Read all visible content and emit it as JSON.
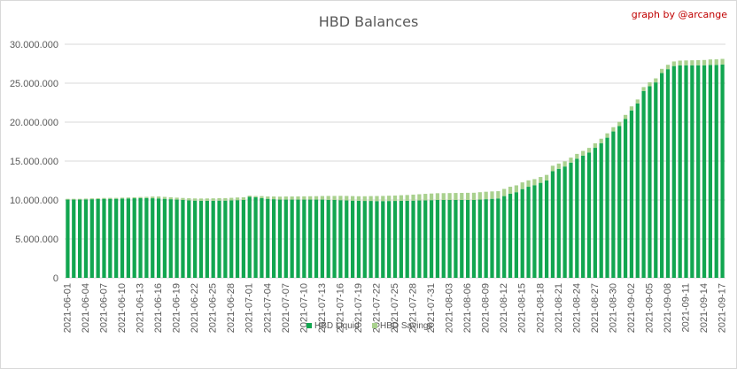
{
  "chart_data": {
    "type": "bar",
    "stacked": true,
    "title": "HBD Balances",
    "credit": "graph by @arcange",
    "xlabel": "",
    "ylabel": "",
    "ylim": [
      0,
      30000000
    ],
    "yticks": [
      0,
      5000000,
      10000000,
      15000000,
      20000000,
      25000000,
      30000000
    ],
    "ytick_labels": [
      "0",
      "5.000.000",
      "10.000.000",
      "15.000.000",
      "20.000.000",
      "25.000.000",
      "30.000.000"
    ],
    "grid": true,
    "legend_position": "bottom",
    "tick_every": 3,
    "categories": [
      "2021-06-01",
      "2021-06-02",
      "2021-06-03",
      "2021-06-04",
      "2021-06-05",
      "2021-06-06",
      "2021-06-07",
      "2021-06-08",
      "2021-06-09",
      "2021-06-10",
      "2021-06-11",
      "2021-06-12",
      "2021-06-13",
      "2021-06-14",
      "2021-06-15",
      "2021-06-16",
      "2021-06-17",
      "2021-06-18",
      "2021-06-19",
      "2021-06-20",
      "2021-06-21",
      "2021-06-22",
      "2021-06-23",
      "2021-06-24",
      "2021-06-25",
      "2021-06-26",
      "2021-06-27",
      "2021-06-28",
      "2021-06-29",
      "2021-06-30",
      "2021-07-01",
      "2021-07-02",
      "2021-07-03",
      "2021-07-04",
      "2021-07-05",
      "2021-07-06",
      "2021-07-07",
      "2021-07-08",
      "2021-07-09",
      "2021-07-10",
      "2021-07-11",
      "2021-07-12",
      "2021-07-13",
      "2021-07-14",
      "2021-07-15",
      "2021-07-16",
      "2021-07-17",
      "2021-07-18",
      "2021-07-19",
      "2021-07-20",
      "2021-07-21",
      "2021-07-22",
      "2021-07-23",
      "2021-07-24",
      "2021-07-25",
      "2021-07-26",
      "2021-07-27",
      "2021-07-28",
      "2021-07-29",
      "2021-07-30",
      "2021-07-31",
      "2021-08-01",
      "2021-08-02",
      "2021-08-03",
      "2021-08-04",
      "2021-08-05",
      "2021-08-06",
      "2021-08-07",
      "2021-08-08",
      "2021-08-09",
      "2021-08-10",
      "2021-08-11",
      "2021-08-12",
      "2021-08-13",
      "2021-08-14",
      "2021-08-15",
      "2021-08-16",
      "2021-08-17",
      "2021-08-18",
      "2021-08-19",
      "2021-08-20",
      "2021-08-21",
      "2021-08-22",
      "2021-08-23",
      "2021-08-24",
      "2021-08-25",
      "2021-08-26",
      "2021-08-27",
      "2021-08-28",
      "2021-08-29",
      "2021-08-30",
      "2021-08-31",
      "2021-09-01",
      "2021-09-02",
      "2021-09-03",
      "2021-09-04",
      "2021-09-05",
      "2021-09-06",
      "2021-09-07",
      "2021-09-08",
      "2021-09-09",
      "2021-09-10",
      "2021-09-11",
      "2021-09-12",
      "2021-09-13",
      "2021-09-14",
      "2021-09-15",
      "2021-09-16",
      "2021-09-17"
    ],
    "series": [
      {
        "name": "HBD Liquid",
        "color": "#12a650",
        "values": [
          10050000,
          10050000,
          10050000,
          10080000,
          10100000,
          10120000,
          10150000,
          10150000,
          10150000,
          10180000,
          10200000,
          10220000,
          10250000,
          10250000,
          10220000,
          10200000,
          10150000,
          10100000,
          10050000,
          10000000,
          9950000,
          9920000,
          9900000,
          9900000,
          9900000,
          9920000,
          9920000,
          9950000,
          9980000,
          10000000,
          10400000,
          10350000,
          10250000,
          10150000,
          10100000,
          10050000,
          10050000,
          10050000,
          10050000,
          10050000,
          10050000,
          10050000,
          10050000,
          10020000,
          10000000,
          9980000,
          9950000,
          9920000,
          9900000,
          9880000,
          9880000,
          9860000,
          9860000,
          9870000,
          9880000,
          9890000,
          9900000,
          9920000,
          9940000,
          9960000,
          9980000,
          10000000,
          10000000,
          10000000,
          10000000,
          10000000,
          10000000,
          10000000,
          10050000,
          10100000,
          10150000,
          10200000,
          10500000,
          10800000,
          11000000,
          11400000,
          11700000,
          11900000,
          12200000,
          12500000,
          13700000,
          14000000,
          14300000,
          14800000,
          15300000,
          15700000,
          16100000,
          16700000,
          17300000,
          18000000,
          18800000,
          19500000,
          20400000,
          21500000,
          22400000,
          24000000,
          24600000,
          25100000,
          26300000,
          26800000,
          27200000,
          27300000,
          27300000,
          27300000,
          27300000,
          27300000,
          27350000,
          27350000,
          27400000
        ]
      },
      {
        "name": "HBD Savings",
        "color": "#a9d18e",
        "values": [
          100000,
          100000,
          100000,
          100000,
          110000,
          110000,
          110000,
          120000,
          120000,
          120000,
          120000,
          130000,
          130000,
          150000,
          220000,
          250000,
          250000,
          250000,
          250000,
          260000,
          270000,
          280000,
          290000,
          300000,
          310000,
          320000,
          320000,
          330000,
          340000,
          350000,
          150000,
          160000,
          250000,
          300000,
          350000,
          380000,
          400000,
          400000,
          410000,
          420000,
          430000,
          440000,
          460000,
          500000,
          520000,
          550000,
          570000,
          580000,
          580000,
          600000,
          620000,
          650000,
          660000,
          680000,
          690000,
          720000,
          740000,
          770000,
          800000,
          830000,
          850000,
          870000,
          880000,
          890000,
          900000,
          910000,
          920000,
          930000,
          950000,
          960000,
          950000,
          930000,
          920000,
          900000,
          880000,
          860000,
          820000,
          780000,
          750000,
          720000,
          700000,
          680000,
          660000,
          640000,
          620000,
          600000,
          590000,
          580000,
          570000,
          560000,
          550000,
          540000,
          530000,
          520000,
          510000,
          500000,
          510000,
          520000,
          540000,
          560000,
          590000,
          600000,
          620000,
          640000,
          660000,
          680000,
          700000,
          710000,
          720000
        ]
      }
    ]
  }
}
